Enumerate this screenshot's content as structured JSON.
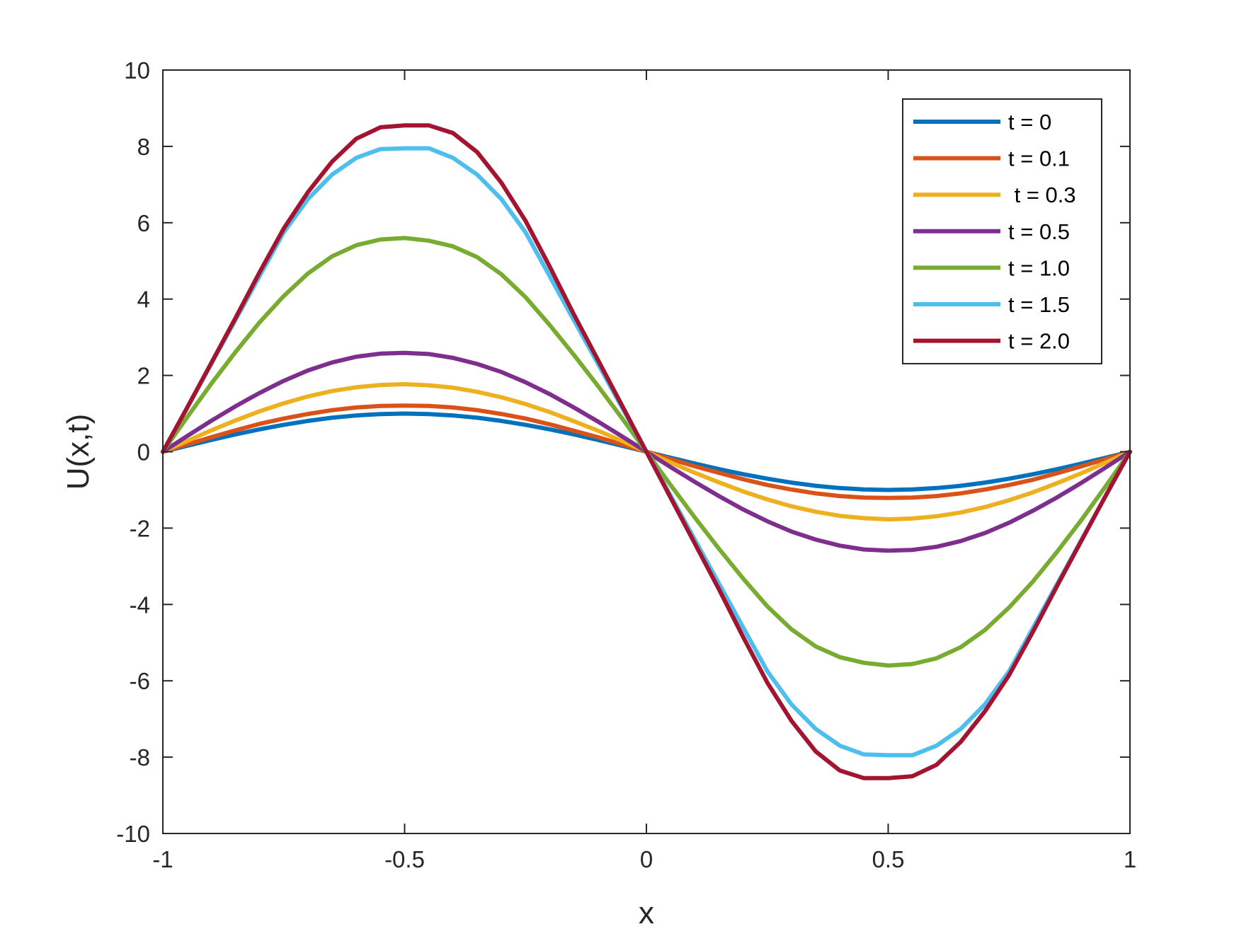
{
  "chart_data": {
    "type": "line",
    "title": "",
    "xlabel": "x",
    "ylabel": "U(x,t)",
    "xlim": [
      -1,
      1
    ],
    "ylim": [
      -10,
      10
    ],
    "xticks": [
      -1,
      -0.5,
      0,
      0.5,
      1
    ],
    "xtick_labels": [
      "-1",
      "-0.5",
      "0",
      "0.5",
      "1"
    ],
    "yticks": [
      -10,
      -8,
      -6,
      -4,
      -2,
      0,
      2,
      4,
      6,
      8,
      10
    ],
    "ytick_labels": [
      "-10",
      "-8",
      "-6",
      "-4",
      "-2",
      "0",
      "2",
      "4",
      "6",
      "8",
      "10"
    ],
    "grid": false,
    "legend_position": "top-right",
    "x": [
      -1,
      -0.95,
      -0.9,
      -0.85,
      -0.8,
      -0.75,
      -0.7,
      -0.65,
      -0.6,
      -0.55,
      -0.5,
      -0.45,
      -0.4,
      -0.35,
      -0.3,
      -0.25,
      -0.2,
      -0.15,
      -0.1,
      -0.05,
      0,
      0.05,
      0.1,
      0.15,
      0.2,
      0.25,
      0.3,
      0.35,
      0.4,
      0.45,
      0.5,
      0.55,
      0.6,
      0.65,
      0.7,
      0.75,
      0.8,
      0.85,
      0.9,
      0.95,
      1
    ],
    "series": [
      {
        "name": "t = 0",
        "color": "#0072BD",
        "values": [
          0,
          0.156,
          0.309,
          0.454,
          0.588,
          0.707,
          0.809,
          0.891,
          0.951,
          0.988,
          1.0,
          0.988,
          0.951,
          0.891,
          0.809,
          0.707,
          0.588,
          0.454,
          0.309,
          0.156,
          0,
          -0.156,
          -0.309,
          -0.454,
          -0.588,
          -0.707,
          -0.809,
          -0.891,
          -0.951,
          -0.988,
          -1.0,
          -0.988,
          -0.951,
          -0.891,
          -0.809,
          -0.707,
          -0.588,
          -0.454,
          -0.309,
          -0.156,
          0
        ]
      },
      {
        "name": "t = 0.1",
        "color": "#D95319",
        "values": [
          0,
          0.19,
          0.38,
          0.56,
          0.73,
          0.87,
          0.99,
          1.09,
          1.16,
          1.2,
          1.21,
          1.2,
          1.16,
          1.09,
          0.99,
          0.87,
          0.72,
          0.55,
          0.38,
          0.19,
          0,
          -0.19,
          -0.38,
          -0.55,
          -0.72,
          -0.87,
          -0.99,
          -1.09,
          -1.16,
          -1.2,
          -1.21,
          -1.2,
          -1.16,
          -1.09,
          -0.99,
          -0.87,
          -0.73,
          -0.56,
          -0.38,
          -0.19,
          0
        ]
      },
      {
        "name": " t = 0.3",
        "color": "#EDB120",
        "values": [
          0,
          0.28,
          0.56,
          0.82,
          1.06,
          1.27,
          1.45,
          1.59,
          1.69,
          1.75,
          1.77,
          1.74,
          1.68,
          1.57,
          1.43,
          1.25,
          1.04,
          0.8,
          0.55,
          0.28,
          0,
          -0.28,
          -0.55,
          -0.8,
          -1.04,
          -1.25,
          -1.43,
          -1.57,
          -1.68,
          -1.74,
          -1.77,
          -1.75,
          -1.69,
          -1.59,
          -1.45,
          -1.27,
          -1.06,
          -0.82,
          -0.56,
          -0.28,
          0
        ]
      },
      {
        "name": "t = 0.5",
        "color": "#7E2F8E",
        "values": [
          0,
          0.41,
          0.81,
          1.19,
          1.54,
          1.86,
          2.13,
          2.34,
          2.49,
          2.57,
          2.59,
          2.56,
          2.46,
          2.3,
          2.09,
          1.82,
          1.51,
          1.16,
          0.79,
          0.4,
          0,
          -0.4,
          -0.79,
          -1.16,
          -1.51,
          -1.82,
          -2.09,
          -2.3,
          -2.46,
          -2.56,
          -2.59,
          -2.57,
          -2.49,
          -2.34,
          -2.13,
          -1.86,
          -1.54,
          -1.19,
          -0.81,
          -0.41,
          0
        ]
      },
      {
        "name": "t = 1.0",
        "color": "#77AC30",
        "values": [
          0,
          0.9,
          1.78,
          2.61,
          3.39,
          4.08,
          4.67,
          5.12,
          5.41,
          5.56,
          5.6,
          5.53,
          5.38,
          5.1,
          4.65,
          4.05,
          3.32,
          2.54,
          1.72,
          0.87,
          0,
          -0.87,
          -1.72,
          -2.54,
          -3.32,
          -4.05,
          -4.65,
          -5.1,
          -5.38,
          -5.53,
          -5.6,
          -5.56,
          -5.41,
          -5.12,
          -4.67,
          -4.08,
          -3.39,
          -2.61,
          -1.78,
          -0.9,
          0
        ]
      },
      {
        "name": "t = 1.5",
        "color": "#4DBEEE",
        "values": [
          0,
          1.15,
          2.3,
          3.45,
          4.6,
          5.75,
          6.62,
          7.26,
          7.7,
          7.93,
          7.95,
          7.95,
          7.7,
          7.26,
          6.62,
          5.75,
          4.6,
          3.45,
          2.3,
          1.15,
          0,
          -1.15,
          -2.3,
          -3.45,
          -4.6,
          -5.75,
          -6.62,
          -7.26,
          -7.7,
          -7.93,
          -7.95,
          -7.95,
          -7.7,
          -7.26,
          -6.62,
          -5.75,
          -4.6,
          -3.45,
          -2.3,
          -1.15,
          0
        ]
      },
      {
        "name": "t = 2.0",
        "color": "#A2142F",
        "values": [
          0,
          1.15,
          2.32,
          3.5,
          4.7,
          5.85,
          6.8,
          7.6,
          8.2,
          8.5,
          8.55,
          8.55,
          8.35,
          7.85,
          7.05,
          6.05,
          4.85,
          3.6,
          2.4,
          1.2,
          0,
          -1.2,
          -2.4,
          -3.6,
          -4.85,
          -6.05,
          -7.05,
          -7.85,
          -8.35,
          -8.55,
          -8.55,
          -8.5,
          -8.2,
          -7.6,
          -6.8,
          -5.85,
          -4.7,
          -3.5,
          -2.32,
          -1.15,
          0
        ]
      }
    ]
  }
}
